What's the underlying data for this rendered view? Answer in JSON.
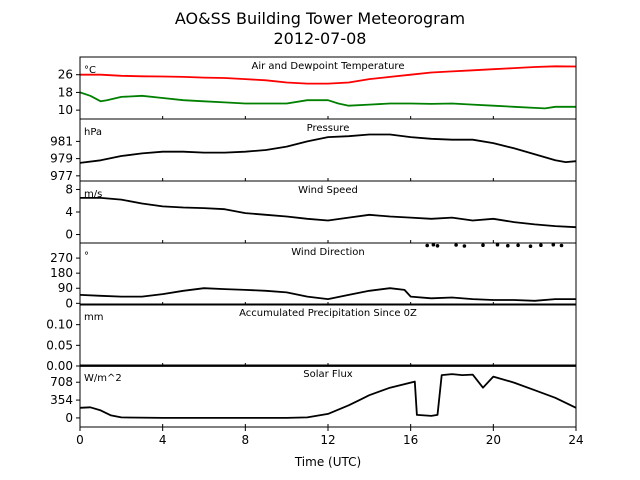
{
  "title_line1": "AO&SS Building Tower Meteorogram",
  "title_line2": "2012-07-08",
  "chart_data": {
    "type": "line",
    "x_label": "Time (UTC)",
    "x_ticks": [
      "0",
      "4",
      "8",
      "12",
      "16",
      "20",
      "24"
    ],
    "xlim": [
      0,
      24
    ],
    "grid": false,
    "panels": [
      {
        "title": "Air and Dewpoint Temperature",
        "unit": "°C",
        "ylim": [
          6,
          34
        ],
        "ticks": [
          10,
          18,
          26
        ],
        "tick_labels": [
          "10",
          "18",
          "26"
        ],
        "series": [
          {
            "color": "#ff0000",
            "x": [
              0,
              1,
              2,
              3,
              4,
              5,
              6,
              7,
              8,
              9,
              10,
              11,
              12,
              13,
              14,
              15,
              16,
              17,
              18,
              19,
              20,
              21,
              22,
              23,
              24
            ],
            "y": [
              26,
              26,
              25.5,
              25.3,
              25.2,
              25,
              24.7,
              24.5,
              24,
              23.5,
              22.5,
              22,
              22,
              22.5,
              24,
              25,
              26,
              27,
              27.5,
              28,
              28.5,
              29,
              29.5,
              29.8,
              29.7
            ]
          },
          {
            "color": "#008000",
            "x": [
              0,
              0.5,
              1,
              1.3,
              2,
              3,
              4,
              5,
              6,
              7,
              8,
              9,
              10,
              11,
              12,
              12.5,
              13,
              14,
              15,
              16,
              17,
              18,
              19,
              20,
              21,
              22,
              22.5,
              23,
              24
            ],
            "y": [
              18,
              16.5,
              14,
              14.5,
              16,
              16.5,
              15.5,
              14.5,
              14,
              13.5,
              13,
              13,
              13,
              14.5,
              14.5,
              13,
              12,
              12.5,
              13,
              13,
              12.8,
              13,
              12.5,
              12,
              11.5,
              11,
              10.8,
              11.5,
              11.5
            ]
          }
        ]
      },
      {
        "title": "Pressure",
        "unit": "hPa",
        "ylim": [
          976.4,
          983.6
        ],
        "ticks": [
          977,
          979,
          981
        ],
        "tick_labels": [
          "977",
          "979",
          "981"
        ],
        "series": [
          {
            "color": "#000000",
            "x": [
              0,
              1,
              2,
              3,
              4,
              5,
              6,
              7,
              8,
              9,
              10,
              11,
              12,
              13,
              14,
              15,
              16,
              17,
              18,
              19,
              20,
              21,
              22,
              23,
              23.5,
              24
            ],
            "y": [
              978.5,
              978.8,
              979.3,
              979.6,
              979.8,
              979.8,
              979.7,
              979.7,
              979.8,
              980,
              980.4,
              981,
              981.5,
              981.6,
              981.8,
              981.8,
              981.5,
              981.3,
              981.2,
              981.2,
              980.8,
              980.2,
              979.5,
              978.8,
              978.6,
              978.7
            ]
          }
        ]
      },
      {
        "title": "Wind Speed",
        "unit": "m/s",
        "ylim": [
          -1.5,
          9.5
        ],
        "ticks": [
          0,
          4,
          8
        ],
        "tick_labels": [
          "0",
          "4",
          "8"
        ],
        "series": [
          {
            "color": "#000000",
            "x": [
              0,
              1,
              2,
              3,
              4,
              5,
              6,
              7,
              8,
              9,
              10,
              11,
              12,
              13,
              14,
              15,
              16,
              17,
              18,
              19,
              20,
              21,
              22,
              23,
              24
            ],
            "y": [
              6.5,
              6.5,
              6.2,
              5.5,
              5,
              4.8,
              4.7,
              4.5,
              3.8,
              3.5,
              3.2,
              2.8,
              2.5,
              3,
              3.5,
              3.2,
              3,
              2.8,
              3,
              2.5,
              2.8,
              2.2,
              1.8,
              1.5,
              1.3
            ]
          }
        ]
      },
      {
        "title": "Wind Direction",
        "unit": "°",
        "ylim": [
          -10,
          360
        ],
        "ticks": [
          0,
          90,
          180,
          270
        ],
        "tick_labels": [
          "0",
          "90",
          "180",
          "270"
        ],
        "series": [
          {
            "color": "#000000",
            "x": [
              0,
              1,
              2,
              3,
              4,
              5,
              6,
              7,
              8,
              9,
              10,
              11,
              12,
              13,
              14,
              15,
              15.7,
              16,
              17,
              18,
              19,
              20,
              21,
              22,
              23,
              24
            ],
            "y": [
              50,
              45,
              40,
              40,
              55,
              75,
              90,
              85,
              80,
              75,
              65,
              40,
              25,
              50,
              75,
              90,
              80,
              40,
              30,
              35,
              25,
              20,
              20,
              15,
              25,
              25
            ]
          },
          {
            "color": "#000000",
            "x": [
              16.8,
              17.1,
              17.3,
              18.2,
              18.6,
              19.5,
              20.2,
              20.7,
              21.2,
              21.8,
              22.3,
              22.9,
              23.3
            ],
            "y": [
              345,
              350,
              343,
              348,
              342,
              347,
              350,
              344,
              346,
              341,
              347,
              350,
              345
            ]
          }
        ]
      },
      {
        "title": "Accumulated Precipitation Since 0Z",
        "unit": "mm",
        "ylim": [
          0,
          0.15
        ],
        "ticks": [
          0,
          0.05,
          0.1
        ],
        "tick_labels": [
          "0.00",
          "0.05",
          "0.10"
        ],
        "series": [
          {
            "color": "#000000",
            "x": [
              0,
              24
            ],
            "y": [
              0,
              0
            ]
          }
        ]
      },
      {
        "title": "Solar Flux",
        "unit": "W/m^2",
        "ylim": [
          -180,
          1050
        ],
        "ticks": [
          0,
          354,
          708
        ],
        "tick_labels": [
          "0",
          "354",
          "708"
        ],
        "series": [
          {
            "color": "#000000",
            "x": [
              0,
              0.5,
              1,
              1.5,
              2,
              4,
              6,
              8,
              10,
              11,
              12,
              13,
              13.5,
              14,
              15,
              16.2,
              16.3,
              17,
              17.3,
              17.5,
              18,
              18.5,
              19,
              19.5,
              20,
              21,
              22,
              23,
              24
            ],
            "y": [
              200,
              210,
              150,
              50,
              10,
              0,
              0,
              0,
              0,
              10,
              80,
              250,
              350,
              450,
              600,
              720,
              60,
              40,
              60,
              850,
              870,
              850,
              860,
              600,
              820,
              700,
              550,
              400,
              200
            ]
          }
        ]
      }
    ]
  }
}
